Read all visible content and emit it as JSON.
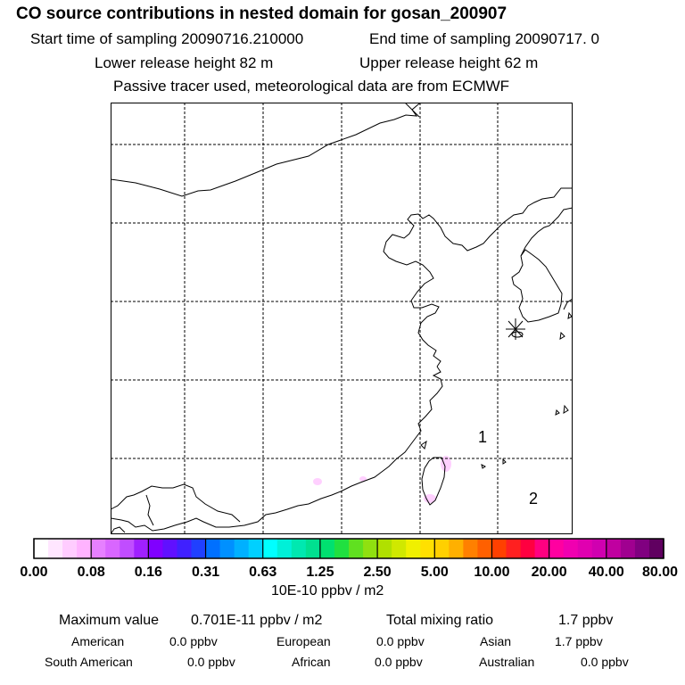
{
  "header": {
    "title": "CO  source contributions in nested domain for gosan_200907",
    "start_time": "Start time of sampling 20090716.210000",
    "end_time": "End time of sampling 20090717.     0",
    "lower_release": "Lower release height   82 m",
    "upper_release": "Upper release height   62 m",
    "passive_note": "Passive tracer used, meteorological data are from ECMWF"
  },
  "map": {
    "region_labels": [
      "1",
      "2"
    ],
    "station_marker": "station-star-icon",
    "line_color": "#000000",
    "plume_color": "#ffc8ff"
  },
  "colorbar": {
    "tick_labels": [
      "0.00",
      "0.08",
      "0.16",
      "0.31",
      "0.63",
      "1.25",
      "2.50",
      "5.00",
      "10.00",
      "20.00",
      "40.00",
      "80.00"
    ],
    "colors": [
      "#ffffff",
      "#ffe6ff",
      "#ffccff",
      "#ffb3ff",
      "#e680ff",
      "#d966ff",
      "#c04dff",
      "#a020ff",
      "#8000ff",
      "#6010ff",
      "#4020ff",
      "#2040ff",
      "#0070ff",
      "#0090ff",
      "#00b0ff",
      "#00d0ff",
      "#00ffff",
      "#00f0d8",
      "#00e8b0",
      "#00e090",
      "#00e070",
      "#20e040",
      "#60e020",
      "#90e010",
      "#b0e000",
      "#d0e800",
      "#f0f000",
      "#ffe000",
      "#ffd000",
      "#ffb000",
      "#ff8000",
      "#ff6000",
      "#ff4000",
      "#ff2020",
      "#ff0040",
      "#ff0080",
      "#ff00a0",
      "#f000b0",
      "#e000b0",
      "#d000b0",
      "#c000a0",
      "#a00090",
      "#800080",
      "#600060"
    ],
    "unit": "10E-10 ppbv / m2"
  },
  "stats": {
    "max_label": "Maximum value",
    "max_value": "0.701E-11 ppbv / m2",
    "total_label": "Total mixing ratio",
    "total_value": "1.7 ppbv",
    "american_label": "American",
    "american_value": "0.0 ppbv",
    "european_label": "European",
    "european_value": "0.0 ppbv",
    "asian_label": "Asian",
    "asian_value": "1.7 ppbv",
    "south_american_label": "South American",
    "south_american_value": "0.0 ppbv",
    "african_label": "African",
    "african_value": "0.0 ppbv",
    "australian_label": "Australian",
    "australian_value": "0.0 ppbv"
  }
}
